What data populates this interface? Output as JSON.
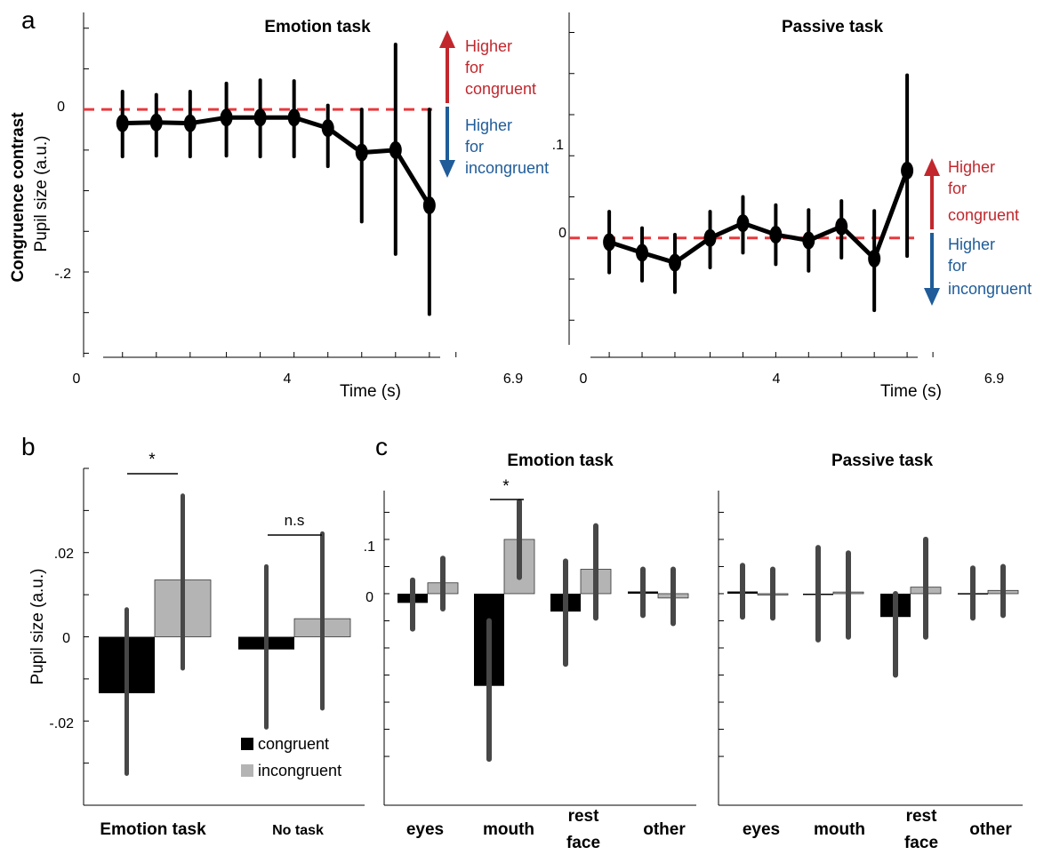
{
  "panels": {
    "a": "a",
    "b": "b",
    "c": "c"
  },
  "shared_ylabel": "Congruence contrast",
  "colors": {
    "congruent": "#000000",
    "incongruent": "#b4b4b4",
    "zero_line": "#e8383d",
    "higher_congruent": "#c1272d",
    "higher_incongruent": "#1f5c99",
    "errorbar": "#474747"
  },
  "annotations": {
    "higher": "Higher",
    "for_congruent": "for",
    "congruent_word": "congruent",
    "for_incongruent": "for",
    "incongruent_word": "incongruent"
  },
  "chart_data": [
    {
      "id": "a-emotion",
      "type": "line",
      "title": "Emotion task",
      "xlabel": "Time (s)",
      "ylabel": "Pupil size (a.u.)",
      "xlim": [
        0,
        6.9
      ],
      "xticklabels": [
        "0",
        "4",
        "6.9"
      ],
      "ylim": [
        -0.305,
        0.115
      ],
      "yticklabels": [
        "0",
        "-.2"
      ],
      "x": [
        0.4,
        1.1,
        1.8,
        2.55,
        3.25,
        3.95,
        4.65,
        5.35,
        6.05,
        6.75
      ],
      "y": [
        -0.017,
        -0.016,
        -0.017,
        -0.01,
        -0.01,
        -0.01,
        -0.023,
        -0.053,
        -0.05,
        -0.118
      ],
      "err_low": [
        -0.058,
        -0.057,
        -0.058,
        -0.057,
        -0.058,
        -0.058,
        -0.07,
        -0.138,
        -0.178,
        -0.252
      ],
      "err_high": [
        0.022,
        0.018,
        0.022,
        0.032,
        0.036,
        0.035,
        0.005,
        0.0,
        0.08,
        0.0
      ]
    },
    {
      "id": "a-passive",
      "type": "line",
      "title": "Passive task",
      "xlabel": "Time (s)",
      "xlim": [
        0,
        6.9
      ],
      "xticklabels": [
        "0",
        "4",
        "6.9"
      ],
      "ylim": [
        -0.13,
        0.27
      ],
      "yticklabels": [
        ".1",
        "0"
      ],
      "x": [
        0.4,
        1.1,
        1.8,
        2.55,
        3.25,
        3.95,
        4.65,
        5.35,
        6.05,
        6.75
      ],
      "y": [
        -0.005,
        -0.018,
        -0.03,
        0.0,
        0.018,
        0.004,
        -0.003,
        0.014,
        -0.025,
        0.082
      ],
      "err_low": [
        -0.042,
        -0.052,
        -0.066,
        -0.036,
        -0.018,
        -0.032,
        -0.04,
        -0.024,
        -0.088,
        -0.022
      ],
      "err_high": [
        0.032,
        0.012,
        0.004,
        0.032,
        0.05,
        0.04,
        0.034,
        0.045,
        0.033,
        0.198
      ]
    },
    {
      "id": "b",
      "type": "bar",
      "ylabel": "Pupil size (a.u.)",
      "ylim": [
        -0.04,
        0.04
      ],
      "yticklabels": [
        ".02",
        "0",
        "-.02"
      ],
      "categories": [
        "Emotion task",
        "No task"
      ],
      "series": [
        {
          "name": "congruent",
          "values": [
            -0.0134,
            -0.003
          ],
          "err_low": [
            -0.0325,
            -0.0215
          ],
          "err_high": [
            0.0065,
            0.0167
          ]
        },
        {
          "name": "incongruent",
          "values": [
            0.0135,
            0.0043
          ],
          "err_low": [
            -0.0075,
            -0.017
          ],
          "err_high": [
            0.0335,
            0.0245
          ]
        }
      ],
      "significance": [
        "*",
        "n.s"
      ],
      "legend": "inside lower-right"
    },
    {
      "id": "c-emotion",
      "type": "bar",
      "title": "Emotion task",
      "ylim": [
        -0.39,
        0.19
      ],
      "yticklabels": [
        ".1",
        "0"
      ],
      "categories": [
        [
          "eyes"
        ],
        [
          "mouth"
        ],
        [
          "rest",
          "face"
        ],
        [
          "other"
        ]
      ],
      "series": [
        {
          "name": "congruent",
          "values": [
            -0.017,
            -0.17,
            -0.033,
            0.004
          ],
          "err_low": [
            -0.065,
            -0.305,
            -0.13,
            -0.04
          ],
          "err_high": [
            0.025,
            -0.05,
            0.06,
            0.045
          ]
        },
        {
          "name": "incongruent",
          "values": [
            0.02,
            0.1,
            0.045,
            -0.008
          ],
          "err_low": [
            -0.028,
            0.03,
            -0.045,
            -0.055
          ],
          "err_high": [
            0.065,
            0.17,
            0.125,
            0.045
          ]
        }
      ],
      "significance": [
        "",
        "*",
        "",
        ""
      ]
    },
    {
      "id": "c-passive",
      "type": "bar",
      "title": "Passive task",
      "ylim": [
        -0.39,
        0.19
      ],
      "categories": [
        [
          "eyes"
        ],
        [
          "mouth"
        ],
        [
          "rest",
          "face"
        ],
        [
          "other"
        ]
      ],
      "series": [
        {
          "name": "congruent",
          "values": [
            0.004,
            -0.002,
            -0.043,
            0.001
          ],
          "err_low": [
            -0.043,
            -0.085,
            -0.15,
            -0.045
          ],
          "err_high": [
            0.052,
            0.085,
            0.0,
            0.047
          ]
        },
        {
          "name": "incongruent",
          "values": [
            0.0,
            0.003,
            0.012,
            0.006
          ],
          "err_low": [
            -0.045,
            -0.08,
            -0.08,
            -0.04
          ],
          "err_high": [
            0.045,
            0.075,
            0.1,
            0.05
          ]
        }
      ]
    }
  ]
}
